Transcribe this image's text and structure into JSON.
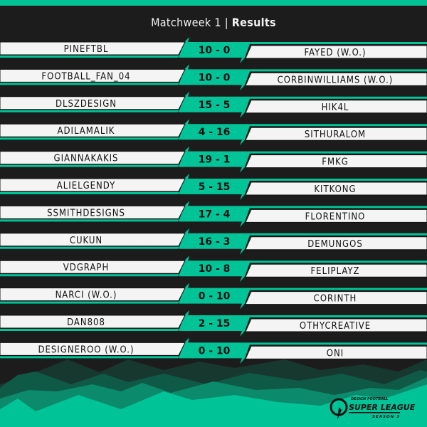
{
  "header": {
    "title_prefix": "Matchweek 1",
    "separator": "|",
    "title_bold": "Results"
  },
  "colors": {
    "accent": "#00c497",
    "background": "#1c1c1c",
    "bar": "#f4f4f4"
  },
  "matches": [
    {
      "home": "PINEFTBL",
      "score": "10 - 0",
      "away": "FAYED (W.O.)"
    },
    {
      "home": "FOOTBALL_FAN_04",
      "score": "10 - 0",
      "away": "CORBINWILLIAMS (W.O.)"
    },
    {
      "home": "DLSZDESIGN",
      "score": "15 - 5",
      "away": "HIK4L"
    },
    {
      "home": "ADILAMALIK",
      "score": "4 - 16",
      "away": "SITHURALOM"
    },
    {
      "home": "GIANNAKAKIS",
      "score": "19 - 1",
      "away": "FMKG"
    },
    {
      "home": "ALIELGENDY",
      "score": "5 - 15",
      "away": "KITKONG"
    },
    {
      "home": "SSMITHDESIGNS",
      "score": "17 - 4",
      "away": "FLORENTINO"
    },
    {
      "home": "CUKUN",
      "score": "16 - 3",
      "away": "DEMUNGOS"
    },
    {
      "home": "VDGRAPH",
      "score": "10 - 8",
      "away": "FELIPLAYZ"
    },
    {
      "home": "NARCI (W.O.)",
      "score": "0 - 10",
      "away": "CORINTH"
    },
    {
      "home": "DAN808",
      "score": "2 - 15",
      "away": "OTHYCREATIVE"
    },
    {
      "home": "DESIGNEROO (W.O.)",
      "score": "0 - 10",
      "away": "ONI"
    }
  ],
  "logo": {
    "line1": "DESIGN FOOTBALL",
    "line2": "SUPER LEAGUE",
    "line3": "SEASON 3"
  }
}
